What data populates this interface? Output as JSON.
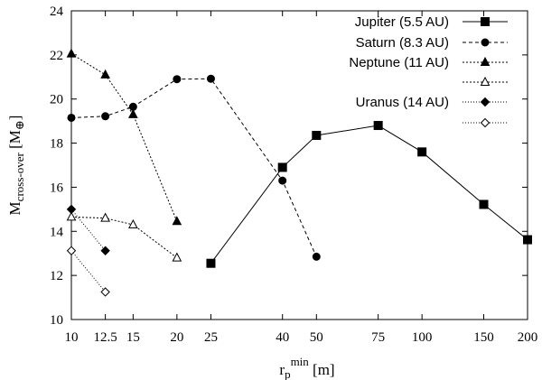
{
  "chart_data": {
    "type": "line",
    "title": "",
    "x_scale": "log",
    "xlim": [
      10,
      200
    ],
    "ylim": [
      10,
      24
    ],
    "x_ticks": [
      10,
      12.5,
      15,
      20,
      25,
      40,
      50,
      75,
      100,
      150,
      200
    ],
    "x_tick_labels": [
      "10",
      "12.5",
      "15",
      "20",
      "25",
      "40",
      "50",
      "75",
      "100",
      "150",
      "200"
    ],
    "y_ticks": [
      10,
      12,
      14,
      16,
      18,
      20,
      22,
      24
    ],
    "y_tick_labels": [
      "10",
      "12",
      "14",
      "16",
      "18",
      "20",
      "22",
      "24"
    ],
    "xlabel": {
      "base": "r",
      "sub": "p",
      "sup": "min",
      "unit": " [m]"
    },
    "ylabel": {
      "base": "M",
      "sub": "cross-over",
      "unit_open": " [M",
      "unit_sub": "⊕",
      "unit_close": "]"
    },
    "grid": false,
    "legend_position": "top-right",
    "series": [
      {
        "name": "Jupiter (5.5 AU)",
        "marker": "square",
        "fill": "#000000",
        "dash": "",
        "x": [
          25,
          40,
          50,
          75,
          100,
          150,
          200
        ],
        "y": [
          12.55,
          16.9,
          18.35,
          18.8,
          17.6,
          15.22,
          13.62
        ]
      },
      {
        "name": "Saturn (8.3 AU)",
        "marker": "circle",
        "fill": "#000000",
        "dash": "4,3",
        "x": [
          10,
          12.5,
          15,
          20,
          25,
          40,
          50
        ],
        "y": [
          19.15,
          19.22,
          19.65,
          20.9,
          20.92,
          16.3,
          12.85
        ]
      },
      {
        "name": "Neptune (11 AU)",
        "marker": "triangle",
        "fill": "#000000",
        "dash": "2,2",
        "x": [
          10,
          12.5,
          15,
          20
        ],
        "y": [
          22.05,
          21.1,
          19.3,
          14.45
        ]
      },
      {
        "name": "",
        "marker": "triangle",
        "fill": "#ffffff",
        "dash": "2,2",
        "x": [
          10,
          12.5,
          15,
          20
        ],
        "y": [
          14.65,
          14.6,
          14.3,
          12.8
        ]
      },
      {
        "name": "Uranus (14 AU)",
        "marker": "diamond",
        "fill": "#000000",
        "dash": "1,2",
        "x": [
          10,
          12.5
        ],
        "y": [
          15.0,
          13.12
        ]
      },
      {
        "name": "",
        "marker": "diamond",
        "fill": "#ffffff",
        "dash": "1,2",
        "x": [
          10,
          12.5
        ],
        "y": [
          13.12,
          11.25
        ]
      }
    ]
  }
}
